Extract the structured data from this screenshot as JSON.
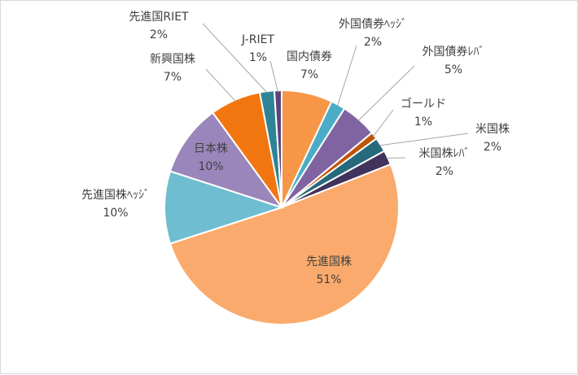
{
  "chart_data": {
    "type": "pie",
    "title": "",
    "start_angle_deg": 0,
    "direction": "clockwise",
    "slices": [
      {
        "name": "国内債券",
        "value": 7,
        "label": "7%",
        "color": "#F79646"
      },
      {
        "name": "外国債券ﾍｯｼﾞ",
        "value": 2,
        "label": "2%",
        "color": "#4BACC6"
      },
      {
        "name": "外国債券ﾚﾊﾞ",
        "value": 5,
        "label": "5%",
        "color": "#8064A2"
      },
      {
        "name": "ゴールド",
        "value": 1,
        "label": "1%",
        "color": "#C0540A"
      },
      {
        "name": "米国株",
        "value": 2,
        "label": "2%",
        "color": "#276A7C"
      },
      {
        "name": "米国株ﾚﾊﾞ",
        "value": 2,
        "label": "2%",
        "color": "#40335C"
      },
      {
        "name": "先進国株",
        "value": 51,
        "label": "51%",
        "color": "#FAAA6C"
      },
      {
        "name": "先進国株ﾍｯｼﾞ",
        "value": 10,
        "label": "10%",
        "color": "#6FBDD1"
      },
      {
        "name": "日本株",
        "value": 10,
        "label": "10%",
        "color": "#9A86BA"
      },
      {
        "name": "新興国株",
        "value": 7,
        "label": "7%",
        "color": "#F2760F"
      },
      {
        "name": "先進国RIET",
        "value": 2,
        "label": "2%",
        "color": "#2E8497"
      },
      {
        "name": "J-RIET",
        "value": 1,
        "label": "1%",
        "color": "#5A4579"
      }
    ]
  }
}
